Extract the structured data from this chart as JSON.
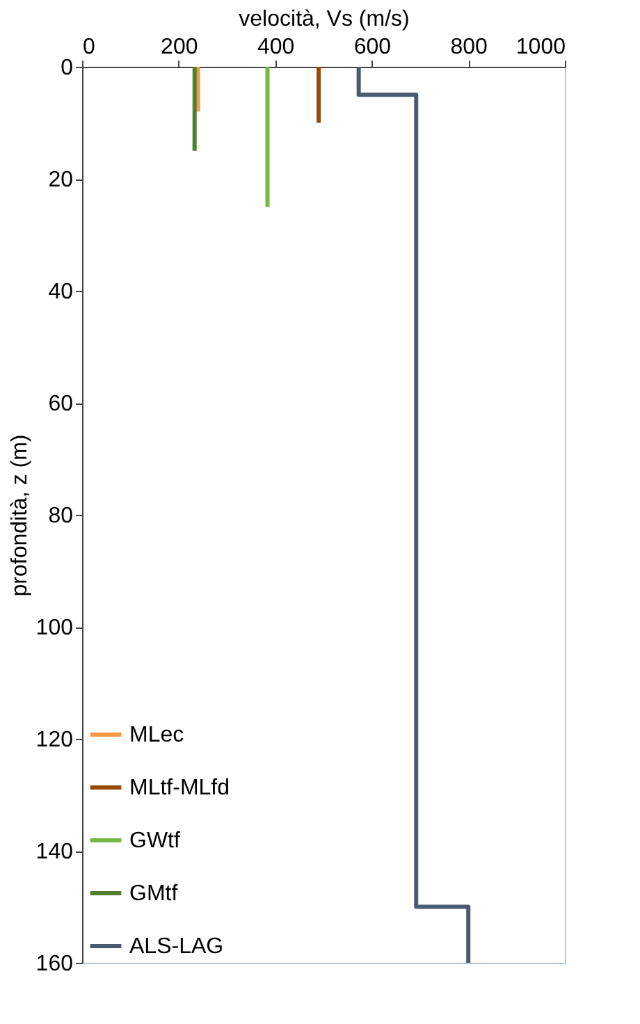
{
  "chart_data": {
    "type": "line",
    "xlabel": "velocità, Vs (m/s)",
    "ylabel": "profondità, z (m)",
    "xlim": [
      0,
      1000
    ],
    "xticks": [
      0,
      200,
      400,
      600,
      800,
      1000
    ],
    "ylim": [
      160,
      0
    ],
    "yticks": [
      0,
      20,
      40,
      60,
      80,
      100,
      120,
      140,
      160
    ],
    "grid": false,
    "legend": "bottom left",
    "marker": "none",
    "line_style": "solid",
    "series": [
      {
        "name": "MLec",
        "color": "#f79646",
        "x": [
          240,
          240
        ],
        "values": [
          0,
          8
        ]
      },
      {
        "name": "MLtf-MLfd",
        "color": "#984807",
        "x": [
          490,
          490
        ],
        "values": [
          0,
          10
        ]
      },
      {
        "name": "GWtf",
        "color": "#77b843",
        "x": [
          384,
          384
        ],
        "values": [
          0,
          25
        ]
      },
      {
        "name": "GMtf",
        "color": "#4f7f2f",
        "x": [
          233,
          233
        ],
        "values": [
          0,
          15
        ]
      },
      {
        "name": "ALS-LAG",
        "color": "#4a5a70",
        "x": [
          573,
          573,
          692,
          692,
          800,
          800
        ],
        "values": [
          0,
          5,
          5,
          150,
          150,
          160
        ]
      }
    ]
  }
}
